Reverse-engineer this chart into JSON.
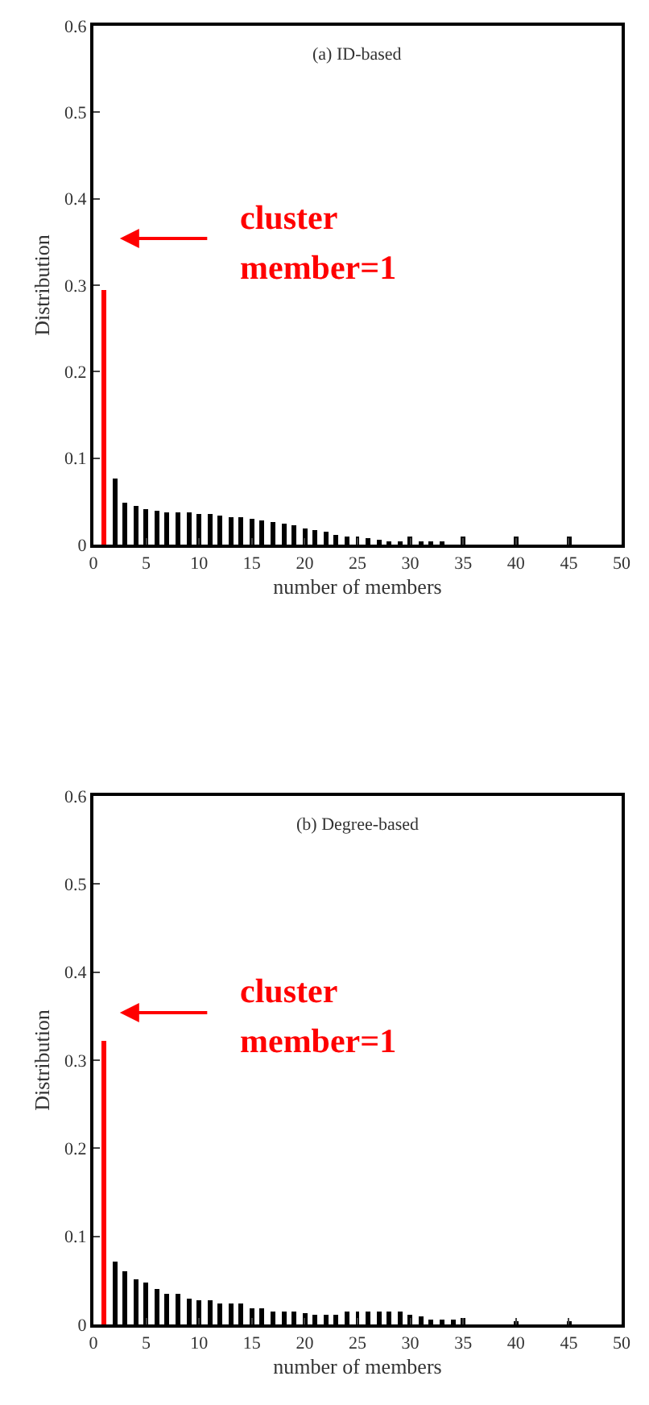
{
  "chart_data": [
    {
      "type": "bar",
      "title": "(a) ID-based",
      "xlabel": "number of members",
      "ylabel": "Distribution",
      "x": [
        1,
        2,
        3,
        4,
        5,
        6,
        7,
        8,
        9,
        10,
        11,
        12,
        13,
        14,
        15,
        16,
        17,
        18,
        19,
        20,
        21,
        22,
        23,
        24,
        25,
        26,
        27,
        28,
        29,
        30,
        31,
        32,
        33,
        35,
        40,
        45
      ],
      "values": [
        0.295,
        0.077,
        0.048,
        0.044,
        0.041,
        0.039,
        0.038,
        0.037,
        0.037,
        0.036,
        0.035,
        0.034,
        0.032,
        0.031,
        0.029,
        0.028,
        0.026,
        0.024,
        0.022,
        0.019,
        0.016,
        0.014,
        0.012,
        0.01,
        0.01,
        0.007,
        0.005,
        0.004,
        0.004,
        0.01,
        0.004,
        0.004,
        0.004,
        0.01,
        0.01,
        0.01
      ],
      "colors": [
        "#ff0000",
        "#000000",
        "#000000",
        "#000000",
        "#000000",
        "#000000",
        "#000000",
        "#000000",
        "#000000",
        "#000000",
        "#000000",
        "#000000",
        "#000000",
        "#000000",
        "#000000",
        "#000000",
        "#000000",
        "#000000",
        "#000000",
        "#000000",
        "#000000",
        "#000000",
        "#000000",
        "#000000",
        "#000000",
        "#000000",
        "#000000",
        "#000000",
        "#000000",
        "#000000",
        "#000000",
        "#000000",
        "#000000",
        "#000000",
        "#000000",
        "#000000"
      ],
      "xlim": [
        0,
        50
      ],
      "xticks": [
        0,
        5,
        10,
        15,
        20,
        25,
        30,
        35,
        40,
        45,
        50
      ],
      "ylim": [
        0,
        0.6
      ],
      "yticks": [
        0,
        0.1,
        0.2,
        0.3,
        0.4,
        0.5,
        0.6
      ],
      "annotations": [
        "cluster",
        "member=1"
      ]
    },
    {
      "type": "bar",
      "title": "(b) Degree-based",
      "xlabel": "number of members",
      "ylabel": "Distribution",
      "x": [
        1,
        2,
        3,
        4,
        5,
        6,
        7,
        8,
        9,
        10,
        11,
        12,
        13,
        14,
        15,
        16,
        17,
        18,
        19,
        20,
        21,
        22,
        23,
        24,
        25,
        26,
        27,
        28,
        29,
        30,
        31,
        32,
        33,
        34,
        35,
        40,
        45
      ],
      "values": [
        0.322,
        0.072,
        0.06,
        0.052,
        0.047,
        0.04,
        0.035,
        0.035,
        0.03,
        0.027,
        0.027,
        0.023,
        0.023,
        0.023,
        0.019,
        0.019,
        0.015,
        0.015,
        0.015,
        0.012,
        0.011,
        0.011,
        0.011,
        0.014,
        0.014,
        0.014,
        0.014,
        0.014,
        0.014,
        0.011,
        0.01,
        0.006,
        0.006,
        0.006,
        0.008,
        0.004,
        0.004
      ],
      "colors": [
        "#ff0000",
        "#000000",
        "#000000",
        "#000000",
        "#000000",
        "#000000",
        "#000000",
        "#000000",
        "#000000",
        "#000000",
        "#000000",
        "#000000",
        "#000000",
        "#000000",
        "#000000",
        "#000000",
        "#000000",
        "#000000",
        "#000000",
        "#000000",
        "#000000",
        "#000000",
        "#000000",
        "#000000",
        "#000000",
        "#000000",
        "#000000",
        "#000000",
        "#000000",
        "#000000",
        "#000000",
        "#000000",
        "#000000",
        "#000000",
        "#000000",
        "#000000",
        "#000000"
      ],
      "xlim": [
        0,
        50
      ],
      "xticks": [
        0,
        5,
        10,
        15,
        20,
        25,
        30,
        35,
        40,
        45,
        50
      ],
      "ylim": [
        0,
        0.6
      ],
      "yticks": [
        0,
        0.1,
        0.2,
        0.3,
        0.4,
        0.5,
        0.6
      ],
      "annotations": [
        "cluster",
        "member=1"
      ]
    }
  ]
}
